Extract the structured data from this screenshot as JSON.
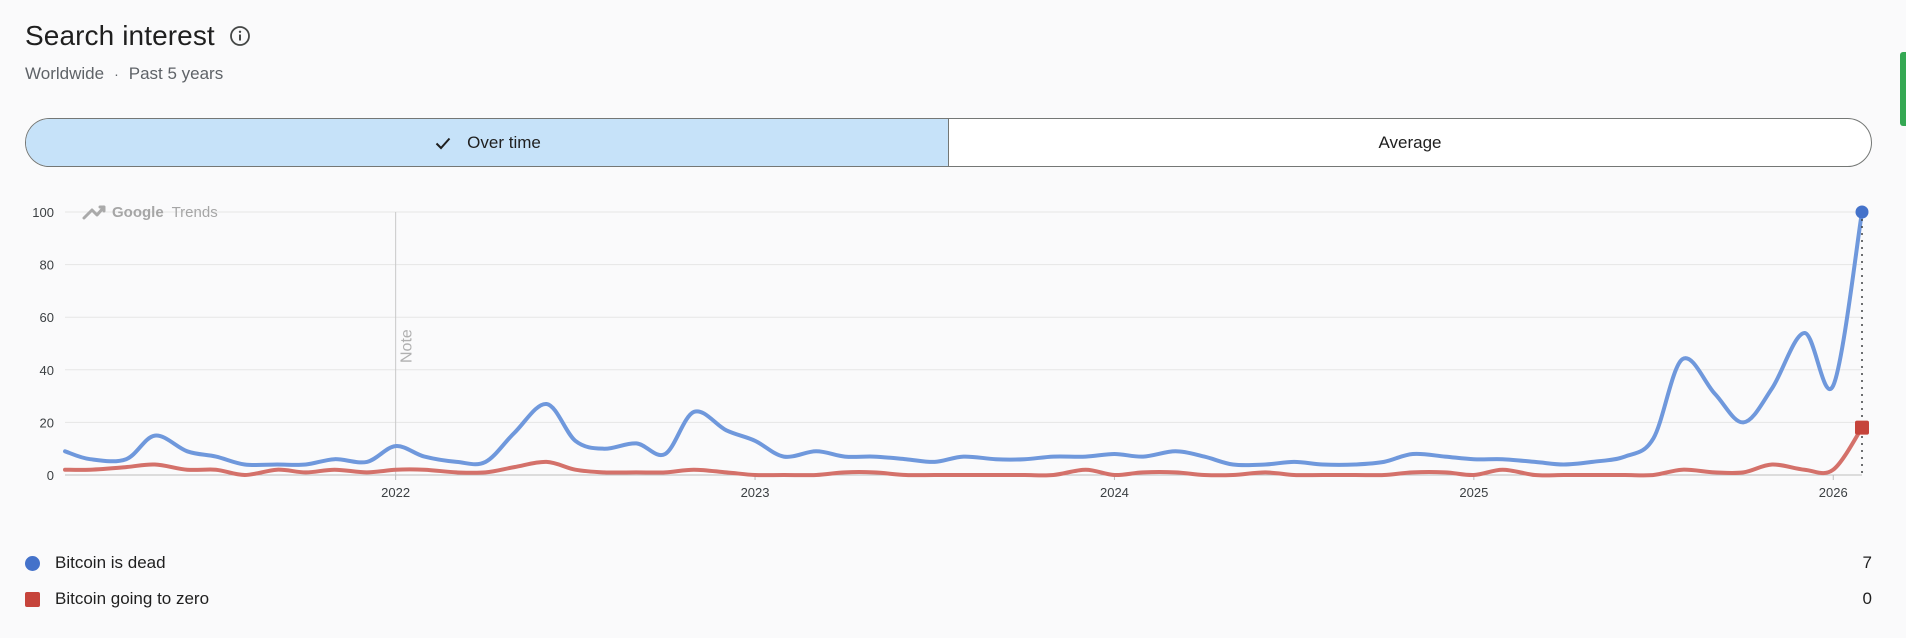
{
  "header": {
    "title": "Search interest",
    "region": "Worldwide",
    "separator": "·",
    "timeframe": "Past 5 years"
  },
  "toggle": {
    "over_time": "Over time",
    "average": "Average"
  },
  "watermark": {
    "brand": "Google",
    "product": "Trends"
  },
  "note_label": "Note",
  "colors": {
    "series1": "#6f98dc",
    "series2": "#d4716a",
    "series1_marker": "#4472ca",
    "series2_marker": "#c6443b",
    "active_segment": "#c6e2f9"
  },
  "legend": [
    {
      "label": "Bitcoin is dead",
      "value": "7"
    },
    {
      "label": "Bitcoin going to zero",
      "value": "0"
    }
  ],
  "chart_data": {
    "type": "line",
    "ylim": [
      0,
      100
    ],
    "yticks": [
      0,
      20,
      40,
      60,
      80,
      100
    ],
    "xlim": [
      2021.08,
      2026.08
    ],
    "xticks": [
      {
        "value": 2022,
        "label": "2022"
      },
      {
        "value": 2023,
        "label": "2023"
      },
      {
        "value": 2024,
        "label": "2024"
      },
      {
        "value": 2025,
        "label": "2025"
      },
      {
        "value": 2026,
        "label": "2026"
      }
    ],
    "note_x": 2022.0,
    "grid": true,
    "series": [
      {
        "name": "Bitcoin is dead",
        "x": [
          2021.08,
          2021.15,
          2021.25,
          2021.33,
          2021.42,
          2021.5,
          2021.58,
          2021.67,
          2021.75,
          2021.83,
          2021.92,
          2022.0,
          2022.08,
          2022.17,
          2022.25,
          2022.33,
          2022.42,
          2022.5,
          2022.58,
          2022.67,
          2022.75,
          2022.83,
          2022.92,
          2023.0,
          2023.08,
          2023.17,
          2023.25,
          2023.33,
          2023.42,
          2023.5,
          2023.58,
          2023.67,
          2023.75,
          2023.83,
          2023.92,
          2024.0,
          2024.08,
          2024.17,
          2024.25,
          2024.33,
          2024.42,
          2024.5,
          2024.58,
          2024.67,
          2024.75,
          2024.83,
          2024.92,
          2025.0,
          2025.08,
          2025.17,
          2025.25,
          2025.33,
          2025.42,
          2025.5,
          2025.58,
          2025.67,
          2025.75,
          2025.83,
          2025.92,
          2026.0,
          2026.08
        ],
        "values": [
          9,
          6,
          6,
          15,
          9,
          7,
          4,
          4,
          4,
          6,
          5,
          11,
          7,
          5,
          5,
          16,
          27,
          13,
          10,
          12,
          8,
          24,
          17,
          13,
          7,
          9,
          7,
          7,
          6,
          5,
          7,
          6,
          6,
          7,
          7,
          8,
          7,
          9,
          7,
          4,
          4,
          5,
          4,
          4,
          5,
          8,
          7,
          6,
          6,
          5,
          4,
          5,
          7,
          14,
          44,
          31,
          20,
          33,
          54,
          34,
          100
        ]
      },
      {
        "name": "Bitcoin going to zero",
        "x": [
          2021.08,
          2021.15,
          2021.25,
          2021.33,
          2021.42,
          2021.5,
          2021.58,
          2021.67,
          2021.75,
          2021.83,
          2021.92,
          2022.0,
          2022.08,
          2022.17,
          2022.25,
          2022.33,
          2022.42,
          2022.5,
          2022.58,
          2022.67,
          2022.75,
          2022.83,
          2022.92,
          2023.0,
          2023.08,
          2023.17,
          2023.25,
          2023.33,
          2023.42,
          2023.5,
          2023.58,
          2023.67,
          2023.75,
          2023.83,
          2023.92,
          2024.0,
          2024.08,
          2024.17,
          2024.25,
          2024.33,
          2024.42,
          2024.5,
          2024.58,
          2024.67,
          2024.75,
          2024.83,
          2024.92,
          2025.0,
          2025.08,
          2025.17,
          2025.25,
          2025.33,
          2025.42,
          2025.5,
          2025.58,
          2025.67,
          2025.75,
          2025.83,
          2025.92,
          2026.0,
          2026.08
        ],
        "values": [
          2,
          2,
          3,
          4,
          2,
          2,
          0,
          2,
          1,
          2,
          1,
          2,
          2,
          1,
          1,
          3,
          5,
          2,
          1,
          1,
          1,
          2,
          1,
          0,
          0,
          0,
          1,
          1,
          0,
          0,
          0,
          0,
          0,
          0,
          2,
          0,
          1,
          1,
          0,
          0,
          1,
          0,
          0,
          0,
          0,
          1,
          1,
          0,
          2,
          0,
          0,
          0,
          0,
          0,
          2,
          1,
          1,
          4,
          2,
          2,
          18
        ]
      }
    ]
  }
}
